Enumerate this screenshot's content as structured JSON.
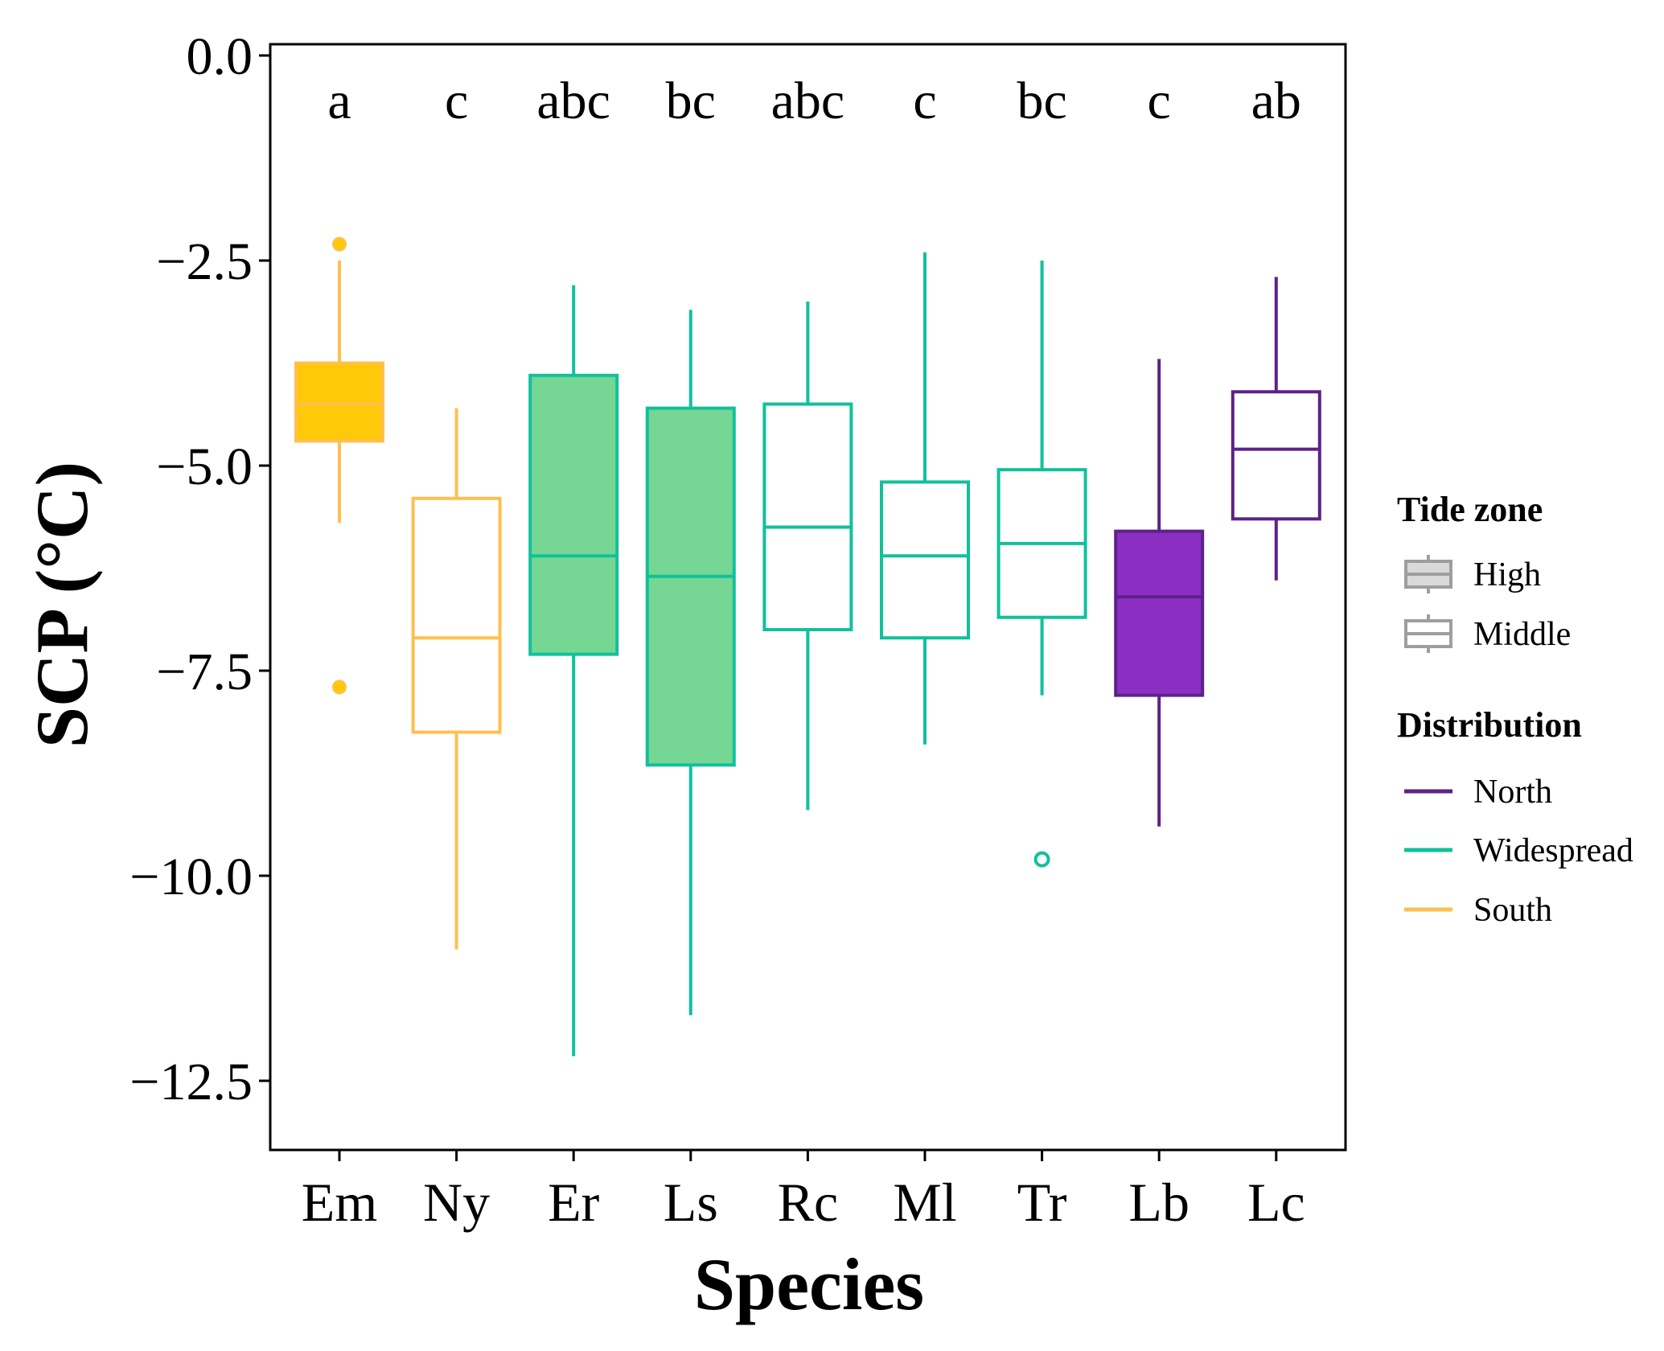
{
  "chart_data": {
    "type": "boxplot",
    "xlabel": "Species",
    "ylabel": "SCP (°C)",
    "ylim": [
      -13.3,
      0.15
    ],
    "yticks": [
      0.0,
      -2.5,
      -5.0,
      -7.5,
      -10.0,
      -12.5
    ],
    "ytick_labels": [
      "0.0",
      "−2.5",
      "−5.0",
      "−7.5",
      "−10.0",
      "−12.5"
    ],
    "grid": false,
    "legend_position": "right",
    "colors": {
      "North": "#5e2189",
      "Widespread": "#10c19a",
      "South": "#ffbf4f",
      "fill_South": "#ffc90a",
      "fill_Widespread": "#76d693",
      "fill_North": "#8a2fc2",
      "fill_Middle": "#ffffff"
    },
    "series": [
      {
        "species": "Em",
        "letters": "a",
        "tide_zone": "High",
        "distribution": "South",
        "whisker_low": -5.7,
        "q1": -4.7,
        "median": -4.25,
        "q3": -3.75,
        "whisker_high": -2.5,
        "outliers": [
          -2.3,
          -7.7
        ]
      },
      {
        "species": "Ny",
        "letters": "c",
        "tide_zone": "Middle",
        "distribution": "South",
        "whisker_low": -10.9,
        "q1": -8.25,
        "median": -7.1,
        "q3": -5.4,
        "whisker_high": -4.3,
        "outliers": []
      },
      {
        "species": "Er",
        "letters": "abc",
        "tide_zone": "High",
        "distribution": "Widespread",
        "whisker_low": -12.2,
        "q1": -7.3,
        "median": -6.1,
        "q3": -3.9,
        "whisker_high": -2.8,
        "outliers": []
      },
      {
        "species": "Ls",
        "letters": "bc",
        "tide_zone": "High",
        "distribution": "Widespread",
        "whisker_low": -11.7,
        "q1": -8.65,
        "median": -6.35,
        "q3": -4.3,
        "whisker_high": -3.1,
        "outliers": []
      },
      {
        "species": "Rc",
        "letters": "abc",
        "tide_zone": "Middle",
        "distribution": "Widespread",
        "whisker_low": -9.2,
        "q1": -7.0,
        "median": -5.75,
        "q3": -4.25,
        "whisker_high": -3.0,
        "outliers": []
      },
      {
        "species": "Ml",
        "letters": "c",
        "tide_zone": "Middle",
        "distribution": "Widespread",
        "whisker_low": -8.4,
        "q1": -7.1,
        "median": -6.1,
        "q3": -5.2,
        "whisker_high": -2.4,
        "outliers": []
      },
      {
        "species": "Tr",
        "letters": "bc",
        "tide_zone": "Middle",
        "distribution": "Widespread",
        "whisker_low": -7.8,
        "q1": -6.85,
        "median": -5.95,
        "q3": -5.05,
        "whisker_high": -2.5,
        "outliers": [
          -9.8
        ]
      },
      {
        "species": "Lb",
        "letters": "c",
        "tide_zone": "High",
        "distribution": "North",
        "whisker_low": -9.4,
        "q1": -7.8,
        "median": -6.6,
        "q3": -5.8,
        "whisker_high": -3.7,
        "outliers": []
      },
      {
        "species": "Lc",
        "letters": "ab",
        "tide_zone": "Middle",
        "distribution": "North",
        "whisker_low": -6.4,
        "q1": -5.65,
        "median": -4.8,
        "q3": -4.1,
        "whisker_high": -2.7,
        "outliers": []
      }
    ],
    "legend": {
      "tide_zone_title": "Tide zone",
      "tide_zone_items": [
        "High",
        "Middle"
      ],
      "distribution_title": "Distribution",
      "distribution_items": [
        "North",
        "Widespread",
        "South"
      ]
    }
  }
}
